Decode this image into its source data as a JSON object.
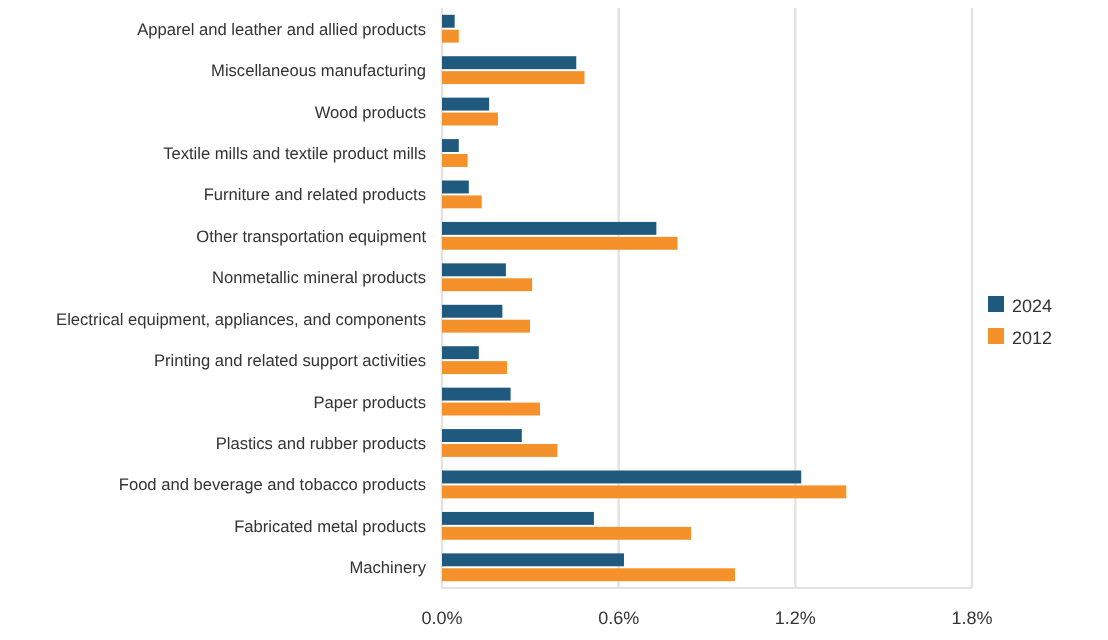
{
  "chart_data": {
    "type": "bar",
    "orientation": "horizontal",
    "categories": [
      "Apparel and leather and allied products",
      "Miscellaneous manufacturing",
      "Wood products",
      "Textile mills and textile product mills",
      "Furniture and related products",
      "Other transportation equipment",
      "Nonmetallic mineral products",
      "Electrical equipment, appliances, and components",
      "Printing and related support activities",
      "Paper products",
      "Plastics and rubber products",
      "Food and beverage and tobacco products",
      "Fabricated metal products",
      "Machinery"
    ],
    "series": [
      {
        "name": "2024",
        "color": "#1f5a7e",
        "values": [
          0.043,
          0.456,
          0.16,
          0.057,
          0.091,
          0.728,
          0.217,
          0.205,
          0.125,
          0.233,
          0.271,
          1.22,
          0.516,
          0.618
        ]
      },
      {
        "name": "2012",
        "color": "#f5912b",
        "values": [
          0.057,
          0.484,
          0.19,
          0.087,
          0.135,
          0.8,
          0.306,
          0.299,
          0.221,
          0.333,
          0.392,
          1.373,
          0.846,
          0.995
        ]
      }
    ],
    "xlim": [
      0,
      1.8
    ],
    "xticks": [
      {
        "value": 0,
        "label": "0.0%"
      },
      {
        "value": 0.6,
        "label": "0.6%"
      },
      {
        "value": 1.2,
        "label": "1.2%"
      },
      {
        "value": 1.8,
        "label": "1.8%"
      }
    ],
    "grid": "x",
    "legend": "right"
  }
}
